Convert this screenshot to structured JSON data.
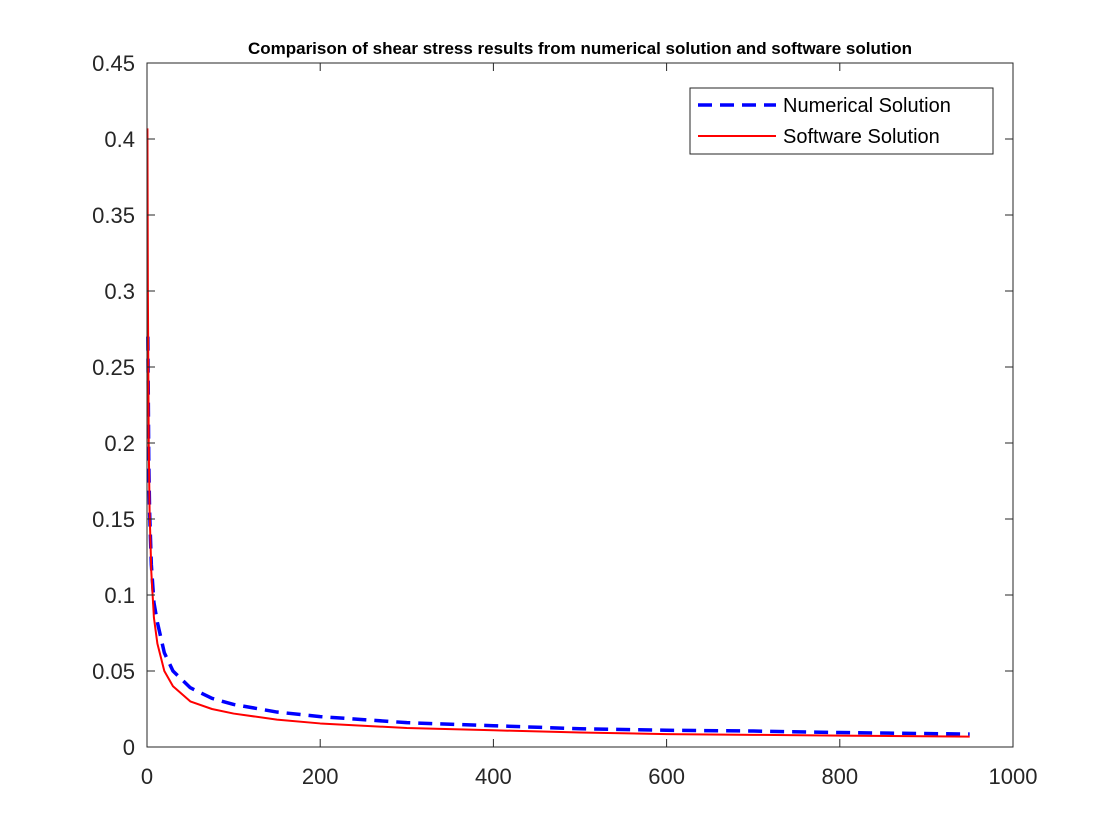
{
  "chart_data": {
    "type": "line",
    "title": "Comparison of shear stress results from numerical solution and software solution",
    "xlabel": "",
    "ylabel": "",
    "xlim": [
      0,
      1000
    ],
    "ylim": [
      0,
      0.45
    ],
    "xticks": [
      0,
      200,
      400,
      600,
      800,
      1000
    ],
    "xtick_labels": [
      "0",
      "200",
      "400",
      "600",
      "800",
      "1000"
    ],
    "yticks": [
      0,
      0.05,
      0.1,
      0.15,
      0.2,
      0.25,
      0.3,
      0.35,
      0.4,
      0.45
    ],
    "ytick_labels": [
      "0",
      "0.05",
      "0.1",
      "0.15",
      "0.2",
      "0.25",
      "0.3",
      "0.35",
      "0.4",
      "0.45"
    ],
    "grid": false,
    "legend_position": "top-right",
    "series": [
      {
        "name": "Numerical Solution",
        "color": "#0000ff",
        "style": "dashed",
        "x": [
          1,
          2,
          3,
          5,
          8,
          12,
          20,
          30,
          50,
          75,
          100,
          150,
          200,
          300,
          400,
          500,
          600,
          700,
          800,
          950
        ],
        "y": [
          0.27,
          0.19,
          0.155,
          0.12,
          0.095,
          0.082,
          0.062,
          0.05,
          0.039,
          0.032,
          0.028,
          0.023,
          0.02,
          0.016,
          0.014,
          0.012,
          0.011,
          0.0105,
          0.0095,
          0.0085
        ]
      },
      {
        "name": "Software Solution",
        "color": "#ff0000",
        "style": "solid",
        "x": [
          0.5,
          1,
          2,
          3,
          5,
          8,
          12,
          20,
          30,
          50,
          75,
          100,
          150,
          200,
          300,
          400,
          500,
          600,
          700,
          800,
          950
        ],
        "y": [
          0.407,
          0.3,
          0.2,
          0.155,
          0.115,
          0.085,
          0.068,
          0.05,
          0.04,
          0.03,
          0.025,
          0.022,
          0.018,
          0.0155,
          0.0125,
          0.011,
          0.0095,
          0.0085,
          0.008,
          0.0075,
          0.0068
        ]
      }
    ]
  }
}
